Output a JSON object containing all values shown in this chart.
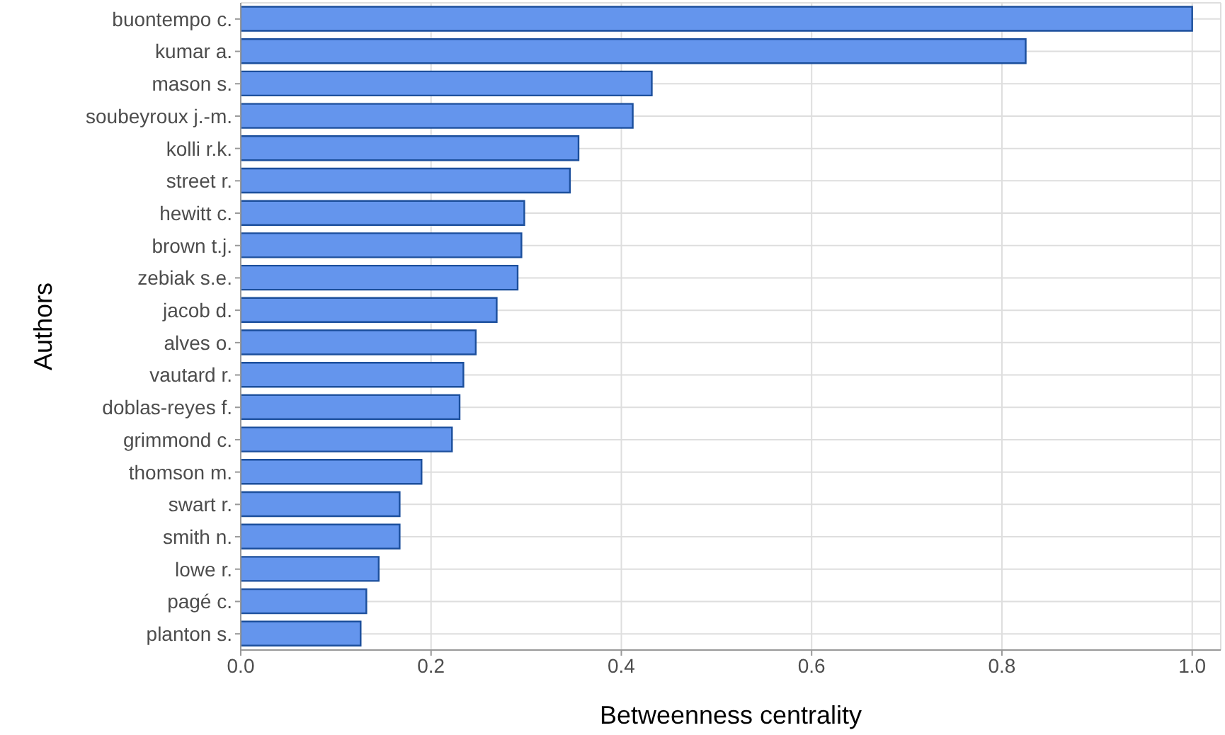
{
  "chart_data": {
    "type": "bar",
    "orientation": "horizontal",
    "xlabel": "Betweenness centrality",
    "ylabel": "Authors",
    "categories": [
      "buontempo c.",
      "kumar a.",
      "mason s.",
      "soubeyroux j.-m.",
      "kolli r.k.",
      "street r.",
      "hewitt c.",
      "brown t.j.",
      "zebiak s.e.",
      "jacob d.",
      "alves o.",
      "vautard r.",
      "doblas-reyes f.",
      "grimmond c.",
      "thomson m.",
      "swart r.",
      "smith n.",
      "lowe r.",
      "pagé c.",
      "planton s."
    ],
    "values": [
      1.0,
      0.825,
      0.432,
      0.412,
      0.355,
      0.346,
      0.298,
      0.295,
      0.291,
      0.269,
      0.247,
      0.234,
      0.23,
      0.222,
      0.19,
      0.167,
      0.167,
      0.145,
      0.132,
      0.126
    ],
    "color": "#6495ed",
    "xlim": [
      0,
      1.03
    ],
    "xticks": [
      {
        "value": 0,
        "label": "0.0"
      },
      {
        "value": 0.2,
        "label": "0.2"
      },
      {
        "value": 0.4,
        "label": "0.4"
      },
      {
        "value": 0.6,
        "label": "0.6"
      },
      {
        "value": 0.8,
        "label": "0.8"
      },
      {
        "value": 1,
        "label": "1.0"
      }
    ],
    "grid": true
  }
}
